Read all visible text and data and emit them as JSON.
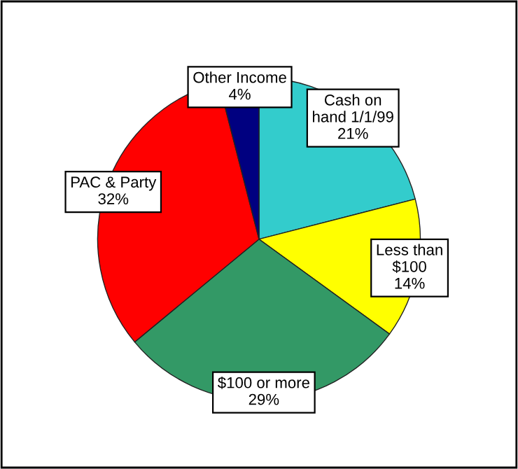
{
  "chart_data": {
    "type": "pie",
    "categories": [
      "Cash on\nhand 1/1/99",
      "Less than\n$100",
      "$100 or more",
      "PAC & Party",
      "Other Income"
    ],
    "values": [
      21,
      14,
      29,
      32,
      4
    ],
    "value_labels": [
      "21%",
      "14%",
      "29%",
      "32%",
      "4%"
    ],
    "colors": [
      "#33cccc",
      "#ffff00",
      "#339966",
      "#ff0000",
      "#000080"
    ],
    "legend": false
  }
}
